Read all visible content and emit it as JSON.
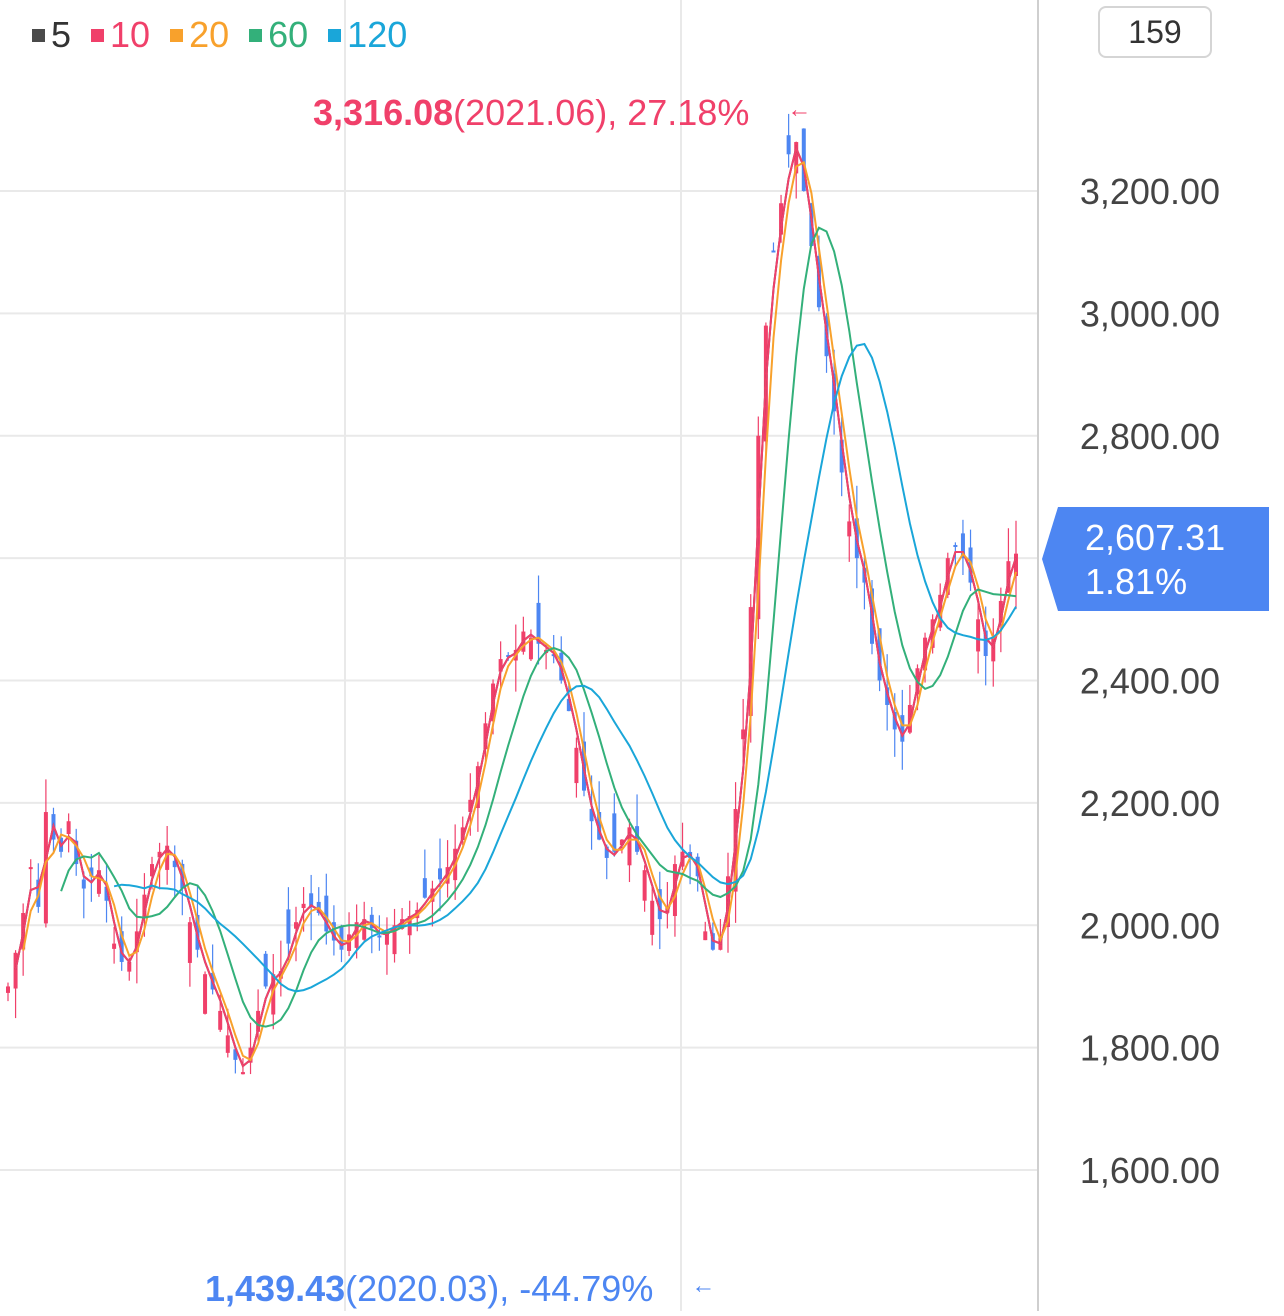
{
  "legend": [
    {
      "label": "5",
      "color": "#4a4a4a",
      "text_color": "#333333"
    },
    {
      "label": "10",
      "color": "#f0406a",
      "text_color": "#f0406a"
    },
    {
      "label": "20",
      "color": "#f8a12c",
      "text_color": "#f8a12c"
    },
    {
      "label": "60",
      "color": "#33b07a",
      "text_color": "#33b07a"
    },
    {
      "label": "120",
      "color": "#1aa6d9",
      "text_color": "#1aa6d9"
    }
  ],
  "period_box": "159",
  "high_annotation": {
    "value": "3,316.08",
    "detail": "(2021.06), 27.18%",
    "arrow": "←",
    "color": "#f0406a"
  },
  "low_annotation": {
    "value": "1,439.43",
    "detail": "(2020.03), -44.79%",
    "arrow": "←",
    "color": "#4d86f2"
  },
  "current": {
    "price": "2,607.31",
    "change": "1.81%",
    "color": "#4d86f2"
  },
  "chart_data": {
    "type": "candlestick",
    "y_axis": {
      "ticks": [
        "3,200.00",
        "3,000.00",
        "2,800.00",
        "2,400.00",
        "2,200.00",
        "2,000.00",
        "1,800.00",
        "1,600.00"
      ],
      "tick_values": [
        3200,
        3000,
        2800,
        2400,
        2200,
        2000,
        1800,
        1600
      ],
      "gridlines": [
        3200,
        3000,
        2800,
        2600,
        2400,
        2200,
        2000,
        1800,
        1600
      ],
      "range": [
        1380,
        3390
      ],
      "position": "right"
    },
    "colors": {
      "up": "#f0406a",
      "down": "#4d86f2",
      "grid": "#e9e9e9"
    },
    "closes": [
      1900,
      1955,
      2020,
      2095,
      2030,
      2185,
      2140,
      2120,
      2170,
      2100,
      2060,
      2080,
      2090,
      2040,
      1970,
      1940,
      1940,
      1990,
      2050,
      2100,
      2120,
      2130,
      2095,
      2060,
      2005,
      1960,
      1920,
      1895,
      1860,
      1820,
      1780,
      1760,
      1800,
      1860,
      1900,
      1920,
      1925,
      1970,
      2005,
      2035,
      2030,
      2020,
      1990,
      1975,
      1960,
      1985,
      2005,
      2010,
      1995,
      1980,
      1990,
      2000,
      2010,
      2015,
      2025,
      2045,
      2060,
      2075,
      2095,
      2125,
      2160,
      2205,
      2260,
      2330,
      2395,
      2435,
      2440,
      2450,
      2480,
      2470,
      2460,
      2450,
      2440,
      2400,
      2350,
      2290,
      2220,
      2170,
      2140,
      2110,
      2120,
      2140,
      2160,
      2120,
      2090,
      2040,
      2010,
      2030,
      2100,
      2120,
      2110,
      2080,
      1990,
      1960,
      1980,
      2080,
      2190,
      2320,
      2520,
      2800,
      2980,
      3100,
      3180,
      3260,
      3280,
      3200,
      3110,
      3010,
      2930,
      2840,
      2740,
      2660,
      2600,
      2560,
      2460,
      2400,
      2360,
      2320,
      2300,
      2360,
      2420,
      2470,
      2500,
      2540,
      2600,
      2620,
      2600,
      2560,
      2500,
      2440,
      2470,
      2530,
      2595,
      2607.31
    ],
    "ma_periods": [
      5,
      10,
      20,
      60,
      120
    ]
  }
}
